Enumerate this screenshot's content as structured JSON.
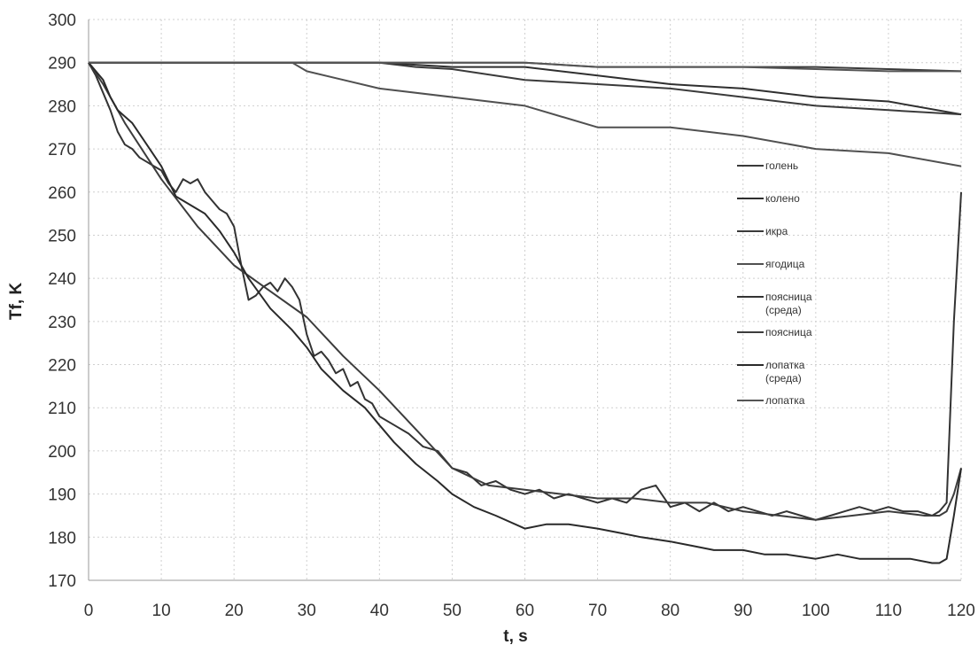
{
  "chart_data": {
    "type": "line",
    "xlabel": "t, s",
    "ylabel": "Tf, K",
    "xlim": [
      0,
      120
    ],
    "ylim": [
      170,
      300
    ],
    "xticks": [
      "0",
      "10",
      "20",
      "30",
      "40",
      "50",
      "60",
      "70",
      "80",
      "90",
      "100",
      "110",
      "120"
    ],
    "yticks": [
      "170",
      "180",
      "190",
      "200",
      "210",
      "220",
      "230",
      "240",
      "250",
      "260",
      "270",
      "280",
      "290",
      "300"
    ],
    "grid": true,
    "legend_position": "right",
    "legend": [
      "голень",
      "колено",
      "икра",
      "ягодица",
      "поясница\n(среда)",
      "поясница",
      "лопатка\n(среда)",
      "лопатка"
    ],
    "series": [
      {
        "name": "голень",
        "color": "#3a3a3a",
        "x": [
          0,
          30,
          50,
          60,
          70,
          80,
          90,
          100,
          110,
          120
        ],
        "y": [
          290,
          290,
          290,
          290,
          289,
          289,
          289,
          289,
          288.5,
          288
        ]
      },
      {
        "name": "колено",
        "color": "#2f2f2f",
        "x": [
          0,
          40,
          50,
          60,
          70,
          80,
          90,
          100,
          110,
          120
        ],
        "y": [
          290,
          290,
          289,
          289,
          287,
          285,
          284,
          282,
          281,
          278
        ]
      },
      {
        "name": "икра",
        "color": "#3a3a3a",
        "x": [
          0,
          40,
          45,
          50,
          60,
          70,
          80,
          90,
          100,
          110,
          120
        ],
        "y": [
          290,
          290,
          289,
          288.5,
          286,
          285,
          284,
          282,
          280,
          279,
          278
        ]
      },
      {
        "name": "ягодица",
        "color": "#505050",
        "x": [
          0,
          28,
          30,
          40,
          50,
          60,
          70,
          80,
          90,
          100,
          110,
          120
        ],
        "y": [
          290,
          290,
          288,
          284,
          282,
          280,
          275,
          275,
          273,
          270,
          269,
          266
        ]
      },
      {
        "name": "поясница\n(среда)",
        "color": "#333333",
        "x": [
          0,
          1,
          2,
          3,
          4,
          5,
          6,
          7,
          8,
          9,
          10,
          11,
          12,
          13,
          14,
          15,
          16,
          17,
          18,
          19,
          20,
          21,
          22,
          23,
          24,
          25,
          26,
          27,
          28,
          29,
          30,
          31,
          32,
          33,
          34,
          35,
          36,
          37,
          38,
          39,
          40,
          42,
          44,
          46,
          48,
          50,
          52,
          54,
          56,
          58,
          60,
          62,
          64,
          66,
          68,
          70,
          72,
          74,
          76,
          78,
          80,
          82,
          84,
          86,
          88,
          90,
          92,
          94,
          96,
          98,
          100,
          102,
          104,
          106,
          108,
          110,
          112,
          114,
          116,
          117,
          118,
          119,
          120
        ],
        "y": [
          290,
          287,
          283,
          279,
          274,
          271,
          270,
          268,
          267,
          266,
          265,
          262,
          260,
          263,
          262,
          263,
          260,
          258,
          256,
          255,
          252,
          243,
          235,
          236,
          238,
          239,
          237,
          240,
          238,
          235,
          227,
          222,
          223,
          221,
          218,
          219,
          215,
          216,
          212,
          211,
          208,
          206,
          204,
          201,
          200,
          196,
          195,
          192,
          193,
          191,
          190,
          191,
          189,
          190,
          189,
          188,
          189,
          188,
          191,
          192,
          187,
          188,
          186,
          188,
          186,
          187,
          186,
          185,
          186,
          185,
          184,
          185,
          186,
          187,
          186,
          187,
          186,
          186,
          185,
          186,
          188,
          230,
          260
        ]
      },
      {
        "name": "поясница",
        "color": "#3c3c3c",
        "x": [
          0,
          2,
          5,
          10,
          15,
          20,
          25,
          30,
          35,
          40,
          45,
          50,
          55,
          60,
          65,
          70,
          75,
          80,
          85,
          90,
          95,
          100,
          105,
          110,
          115,
          117,
          118,
          119,
          120
        ],
        "y": [
          290,
          285,
          276,
          263,
          252,
          243,
          237,
          231,
          222,
          214,
          205,
          196,
          192,
          191,
          190,
          189,
          189,
          188,
          188,
          186,
          185,
          184,
          185,
          186,
          185,
          185,
          186,
          190,
          196
        ]
      },
      {
        "name": "лопатка\n(среда)",
        "color": "#2a2a2a",
        "x": [
          0,
          1,
          2,
          3,
          4,
          6,
          8,
          10,
          12,
          14,
          16,
          18,
          20,
          22,
          25,
          28,
          30,
          32,
          35,
          38,
          40,
          42,
          45,
          48,
          50,
          53,
          56,
          60,
          63,
          66,
          70,
          73,
          76,
          80,
          83,
          86,
          90,
          93,
          96,
          100,
          103,
          106,
          110,
          113,
          116,
          117,
          118,
          119,
          120
        ],
        "y": [
          290,
          288,
          286,
          282,
          279,
          276,
          271,
          266,
          259,
          257,
          255,
          251,
          246,
          240,
          233,
          228,
          224,
          219,
          214,
          210,
          206,
          202,
          197,
          193,
          190,
          187,
          185,
          182,
          183,
          183,
          182,
          181,
          180,
          179,
          178,
          177,
          177,
          176,
          176,
          175,
          176,
          175,
          175,
          175,
          174,
          174,
          175,
          185,
          196
        ]
      },
      {
        "name": "лопатка",
        "color": "#555555",
        "x": [
          0,
          10,
          20,
          30,
          40,
          50,
          60,
          70,
          80,
          90,
          100,
          110,
          120
        ],
        "y": [
          290,
          290,
          290,
          290,
          290,
          290,
          290,
          289,
          289,
          289,
          288.5,
          288,
          288
        ]
      }
    ]
  }
}
